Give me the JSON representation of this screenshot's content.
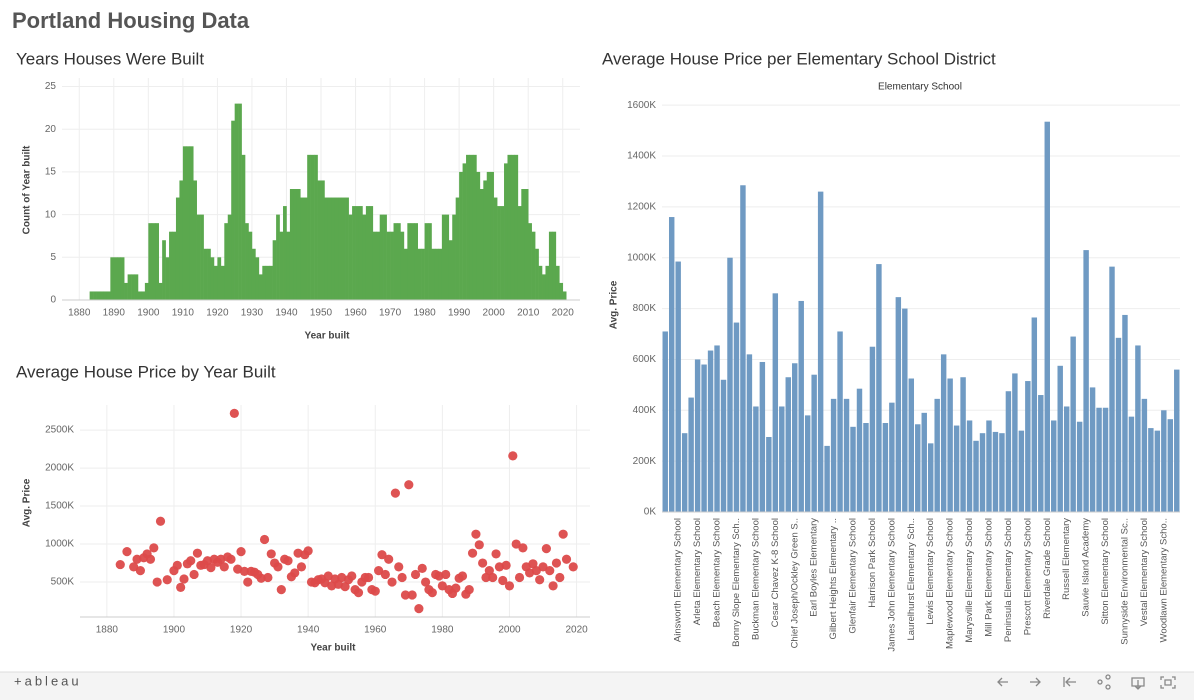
{
  "header": {
    "title": "Portland Housing Data"
  },
  "footer": {
    "brand": "+ableau"
  },
  "chart_data": [
    {
      "type": "histogram",
      "title": "Years Houses Were Built",
      "xlabel": "Year built",
      "ylabel": "Count of Year built",
      "color": "#5ba84e",
      "grid": true,
      "xlim": [
        1875,
        2025
      ],
      "xticks": [
        1880,
        1890,
        1900,
        1910,
        1920,
        1930,
        1940,
        1950,
        1960,
        1970,
        1980,
        1990,
        2000,
        2010,
        2020
      ],
      "ylim": [
        0,
        26
      ],
      "yticks": [
        0,
        5,
        10,
        15,
        20,
        25
      ],
      "bins": [
        1883,
        1884,
        1885,
        1886,
        1887,
        1888,
        1889,
        1890,
        1891,
        1892,
        1893,
        1894,
        1895,
        1896,
        1897,
        1898,
        1899,
        1900,
        1901,
        1902,
        1903,
        1904,
        1905,
        1906,
        1907,
        1908,
        1909,
        1910,
        1911,
        1912,
        1913,
        1914,
        1915,
        1916,
        1917,
        1918,
        1919,
        1920,
        1921,
        1922,
        1923,
        1924,
        1925,
        1926,
        1927,
        1928,
        1929,
        1930,
        1931,
        1932,
        1933,
        1934,
        1935,
        1936,
        1937,
        1938,
        1939,
        1940,
        1941,
        1942,
        1943,
        1944,
        1945,
        1946,
        1947,
        1948,
        1949,
        1950,
        1951,
        1952,
        1953,
        1954,
        1955,
        1956,
        1957,
        1958,
        1959,
        1960,
        1961,
        1962,
        1963,
        1964,
        1965,
        1966,
        1967,
        1968,
        1969,
        1970,
        1971,
        1972,
        1973,
        1974,
        1975,
        1976,
        1977,
        1978,
        1979,
        1980,
        1981,
        1982,
        1983,
        1984,
        1985,
        1986,
        1987,
        1988,
        1989,
        1990,
        1991,
        1992,
        1993,
        1994,
        1995,
        1996,
        1997,
        1998,
        1999,
        2000,
        2001,
        2002,
        2003,
        2004,
        2005,
        2006,
        2007,
        2008,
        2009,
        2010,
        2011,
        2012,
        2013,
        2014,
        2015,
        2016,
        2017,
        2018,
        2019,
        2020,
        2021
      ],
      "counts": [
        1,
        1,
        1,
        1,
        1,
        1,
        5,
        5,
        5,
        5,
        2,
        3,
        3,
        3,
        1,
        1,
        2,
        9,
        9,
        9,
        2,
        7,
        5,
        8,
        8,
        12,
        14,
        18,
        18,
        18,
        14,
        10,
        10,
        6,
        6,
        5,
        4,
        5,
        4,
        9,
        10,
        21,
        23,
        23,
        17,
        9,
        8,
        6,
        5,
        3,
        4,
        4,
        4,
        7,
        10,
        8,
        11,
        8,
        13,
        13,
        13,
        12,
        12,
        17,
        17,
        17,
        14,
        14,
        12,
        12,
        12,
        12,
        12,
        12,
        12,
        10,
        11,
        11,
        11,
        10,
        11,
        11,
        8,
        8,
        10,
        10,
        8,
        8,
        9,
        9,
        8,
        6,
        9,
        9,
        9,
        6,
        6,
        9,
        9,
        6,
        6,
        6,
        10,
        10,
        7,
        10,
        12,
        15,
        16,
        17,
        17,
        17,
        15,
        13,
        14,
        15,
        15,
        12,
        11,
        11,
        16,
        17,
        17,
        17,
        11,
        13,
        13,
        9,
        8,
        6,
        4,
        3,
        4,
        8,
        8,
        4,
        2,
        1
      ]
    },
    {
      "type": "scatter",
      "title": "Average House Price by Year Built",
      "xlabel": "Year built",
      "ylabel": "Avg. Price",
      "color": "#dc4a4a",
      "grid": true,
      "xlim": [
        1872,
        2024
      ],
      "xticks": [
        1880,
        1900,
        1920,
        1940,
        1960,
        1980,
        2000,
        2020
      ],
      "ylim": [
        40000,
        2830000
      ],
      "yticks": [
        {
          "value": 500000,
          "label": "500K"
        },
        {
          "value": 1000000,
          "label": "1000K"
        },
        {
          "value": 1500000,
          "label": "1500K"
        },
        {
          "value": 2000000,
          "label": "2000K"
        },
        {
          "value": 2500000,
          "label": "2500K"
        }
      ],
      "x": [
        1884,
        1886,
        1888,
        1889,
        1890,
        1891,
        1892,
        1893,
        1894,
        1895,
        1896,
        1898,
        1900,
        1901,
        1902,
        1903,
        1904,
        1905,
        1906,
        1907,
        1908,
        1909,
        1910,
        1911,
        1912,
        1913,
        1914,
        1915,
        1916,
        1917,
        1918,
        1919,
        1920,
        1921,
        1922,
        1923,
        1924,
        1925,
        1926,
        1927,
        1928,
        1929,
        1930,
        1931,
        1932,
        1933,
        1934,
        1935,
        1936,
        1937,
        1938,
        1939,
        1940,
        1941,
        1942,
        1943,
        1944,
        1945,
        1946,
        1947,
        1948,
        1949,
        1950,
        1951,
        1952,
        1953,
        1954,
        1955,
        1956,
        1957,
        1958,
        1959,
        1960,
        1961,
        1962,
        1963,
        1964,
        1965,
        1966,
        1967,
        1968,
        1969,
        1970,
        1971,
        1972,
        1973,
        1974,
        1975,
        1976,
        1977,
        1978,
        1979,
        1980,
        1981,
        1982,
        1983,
        1984,
        1985,
        1986,
        1987,
        1988,
        1989,
        1990,
        1991,
        1992,
        1993,
        1994,
        1995,
        1996,
        1997,
        1998,
        1999,
        2000,
        2001,
        2002,
        2003,
        2004,
        2005,
        2006,
        2007,
        2008,
        2009,
        2010,
        2011,
        2012,
        2013,
        2014,
        2015,
        2016,
        2017,
        2019
      ],
      "values": [
        730000,
        900000,
        700000,
        800000,
        650000,
        820000,
        870000,
        800000,
        950000,
        500000,
        1300000,
        530000,
        650000,
        720000,
        430000,
        540000,
        740000,
        780000,
        600000,
        880000,
        720000,
        730000,
        780000,
        690000,
        800000,
        760000,
        800000,
        700000,
        830000,
        800000,
        2720000,
        670000,
        900000,
        640000,
        500000,
        640000,
        630000,
        600000,
        550000,
        1060000,
        560000,
        870000,
        750000,
        700000,
        400000,
        800000,
        780000,
        570000,
        620000,
        880000,
        700000,
        860000,
        910000,
        500000,
        490000,
        530000,
        540000,
        490000,
        580000,
        450000,
        540000,
        470000,
        560000,
        440000,
        530000,
        580000,
        400000,
        360000,
        500000,
        560000,
        560000,
        400000,
        380000,
        650000,
        860000,
        600000,
        800000,
        500000,
        1670000,
        700000,
        560000,
        330000,
        1780000,
        330000,
        600000,
        150000,
        680000,
        500000,
        400000,
        360000,
        600000,
        580000,
        450000,
        600000,
        400000,
        350000,
        420000,
        550000,
        580000,
        340000,
        400000,
        880000,
        1130000,
        990000,
        750000,
        560000,
        650000,
        560000,
        870000,
        700000,
        520000,
        720000,
        450000,
        2160000,
        1000000,
        560000,
        950000,
        700000,
        620000,
        740000,
        650000,
        530000,
        700000,
        940000,
        650000,
        450000,
        750000,
        560000,
        1130000,
        800000,
        700000
      ]
    },
    {
      "type": "bar",
      "title": "Average House Price per Elementary School District",
      "header": "Elementary School",
      "ylabel": "Avg. Price",
      "color": "#6f9ac3",
      "grid": true,
      "ylim": [
        0,
        1640000
      ],
      "yticks": [
        {
          "value": 0,
          "label": "0K"
        },
        {
          "value": 200000,
          "label": "200K"
        },
        {
          "value": 400000,
          "label": "400K"
        },
        {
          "value": 600000,
          "label": "600K"
        },
        {
          "value": 800000,
          "label": "800K"
        },
        {
          "value": 1000000,
          "label": "1000K"
        },
        {
          "value": 1200000,
          "label": "1200K"
        },
        {
          "value": 1400000,
          "label": "1400K"
        },
        {
          "value": 1600000,
          "label": "1600K"
        }
      ],
      "categories": [
        null,
        null,
        "Ainsworth Elementary School",
        null,
        null,
        "Arleta Elementary School",
        null,
        null,
        "Beach Elementary School",
        null,
        null,
        "Bonny Slope Elementary Sch..",
        null,
        null,
        "Buckman Elementary School",
        null,
        null,
        "Cesar Chavez K-8 School",
        null,
        null,
        "Chief Joseph/Ockley Green S..",
        null,
        null,
        "Earl Boyles Elementary",
        null,
        null,
        "Gilbert Heights Elementary ..",
        null,
        null,
        "Glenfair Elementary School",
        null,
        null,
        "Harrison Park School",
        null,
        null,
        "James John Elementary School",
        null,
        null,
        "Laurelhurst Elementary Sch..",
        null,
        null,
        "Lewis Elementary School",
        null,
        null,
        "Maplewood Elementary School",
        null,
        null,
        "Marysville Elementary School",
        null,
        null,
        "Mill Park Elementary School",
        null,
        null,
        "Peninsula Elementary School",
        null,
        null,
        "Prescott Elementary School",
        null,
        null,
        "Riverdale Grade School",
        null,
        null,
        "Russell Elementary",
        null,
        null,
        "Sauvie Island Academy",
        null,
        null,
        "Sitton Elementary School",
        null,
        null,
        "Sunnyside Environmental Sc..",
        null,
        null,
        "Vestal Elementary School",
        null,
        null,
        "Woodlawn Elementary Scho..",
        null,
        null
      ],
      "values": [
        710000,
        1160000,
        985000,
        310000,
        450000,
        600000,
        580000,
        635000,
        655000,
        520000,
        1000000,
        745000,
        1285000,
        620000,
        415000,
        590000,
        295000,
        860000,
        415000,
        530000,
        585000,
        830000,
        380000,
        540000,
        1260000,
        260000,
        445000,
        710000,
        445000,
        335000,
        485000,
        350000,
        650000,
        975000,
        350000,
        430000,
        845000,
        800000,
        525000,
        345000,
        390000,
        270000,
        445000,
        620000,
        525000,
        340000,
        530000,
        360000,
        280000,
        310000,
        360000,
        315000,
        310000,
        475000,
        545000,
        320000,
        515000,
        765000,
        460000,
        1535000,
        360000,
        575000,
        415000,
        690000,
        355000,
        1030000,
        490000,
        410000,
        410000,
        965000,
        685000,
        775000,
        375000,
        655000,
        445000,
        330000,
        320000,
        400000,
        365000,
        560000
      ]
    }
  ]
}
